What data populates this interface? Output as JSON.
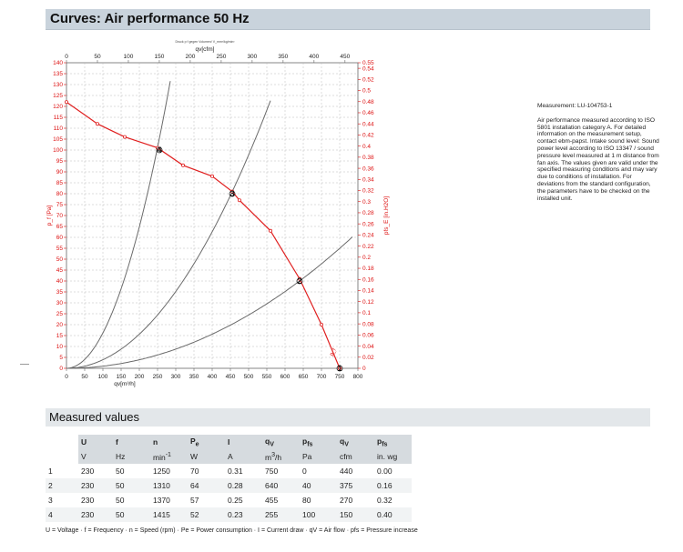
{
  "header": {
    "title": "Curves: Air performance 50 Hz"
  },
  "chart_data": {
    "type": "line",
    "top_note": "Druck p f gegen Volumen/ V_mm³/kg/min³",
    "top_xlabel": "qv[cfm]",
    "xlabel": "qv[m³/h]",
    "ylabel": "p_f [Pa]",
    "ylabel_right": "pfs_E [in.H2O]",
    "xlim": [
      0,
      800
    ],
    "ylim": [
      0,
      140
    ],
    "y2lim": [
      0,
      0.55
    ],
    "x_ticks": [
      "0",
      "50",
      "100",
      "150",
      "200",
      "250",
      "300",
      "350",
      "400",
      "450",
      "500",
      "550",
      "600",
      "650",
      "700",
      "750",
      "800"
    ],
    "top_ticks": [
      "0",
      "50",
      "100",
      "150",
      "200",
      "250",
      "300",
      "350",
      "400",
      "450"
    ],
    "y_ticks": [
      "0",
      "5",
      "10",
      "15",
      "20",
      "25",
      "30",
      "35",
      "40",
      "45",
      "50",
      "55",
      "60",
      "65",
      "70",
      "75",
      "80",
      "85",
      "90",
      "95",
      "100",
      "105",
      "110",
      "115",
      "120",
      "125",
      "130",
      "135",
      "140"
    ],
    "y2_ticks": [
      "0",
      "0.02",
      "0.04",
      "0.06",
      "0.08",
      "0.1",
      "0.12",
      "0.14",
      "0.16",
      "0.18",
      "0.2",
      "0.22",
      "0.24",
      "0.26",
      "0.28",
      "0.3",
      "0.32",
      "0.34",
      "0.36",
      "0.38",
      "0.4",
      "0.42",
      "0.44",
      "0.46",
      "0.48",
      "0.5",
      "0.52",
      "0.54",
      "0.55"
    ],
    "fan_curve": {
      "name": "p_f",
      "x": [
        0,
        85,
        160,
        250,
        320,
        400,
        455,
        475,
        560,
        640,
        700,
        750
      ],
      "y": [
        122,
        112,
        106,
        101,
        93,
        88,
        81,
        77,
        63,
        41,
        20,
        0
      ]
    },
    "system_curves": [
      {
        "k": 0.00162,
        "x_end": 285
      },
      {
        "k": 0.000391,
        "x_end": 560
      },
      {
        "k": 9.77e-05,
        "x_end": 785
      }
    ],
    "operating_points": [
      {
        "label": "1",
        "x": 750,
        "y": 0
      },
      {
        "label": "2",
        "x": 640,
        "y": 40
      },
      {
        "label": "3",
        "x": 455,
        "y": 80
      },
      {
        "label": "4",
        "x": 255,
        "y": 100
      }
    ]
  },
  "measurement": {
    "id": "Measurement: LU-104753-1",
    "text": "Air performance measured according to ISO 5801 installation category A. For detailed information on the measurement setup, contact ebm-papst. Intake sound level: Sound power level according to ISO 13347 / sound pressure level measured at 1 m distance from fan axis. The values given are valid under the specified measuring conditions and may vary due to conditions of installation. For deviations from the standard configuration, the parameters have to be checked on the installed unit."
  },
  "measured_values": {
    "title": "Measured values",
    "headers": [
      "U",
      "f",
      "n",
      "Pe",
      "I",
      "qV",
      "pfs",
      "qV",
      "pfs"
    ],
    "units": [
      "V",
      "Hz",
      "min-1",
      "W",
      "A",
      "m3/h",
      "Pa",
      "cfm",
      "in. wg"
    ],
    "rows": [
      [
        "1",
        "230",
        "50",
        "1250",
        "70",
        "0.31",
        "750",
        "0",
        "440",
        "0.00"
      ],
      [
        "2",
        "230",
        "50",
        "1310",
        "64",
        "0.28",
        "640",
        "40",
        "375",
        "0.16"
      ],
      [
        "3",
        "230",
        "50",
        "1370",
        "57",
        "0.25",
        "455",
        "80",
        "270",
        "0.32"
      ],
      [
        "4",
        "230",
        "50",
        "1415",
        "52",
        "0.23",
        "255",
        "100",
        "150",
        "0.40"
      ]
    ]
  },
  "legend": "U = Voltage · f = Frequency · n = Speed (rpm) · Pe = Power consumption · I = Current draw · qV = Air flow · pfs = Pressure increase"
}
